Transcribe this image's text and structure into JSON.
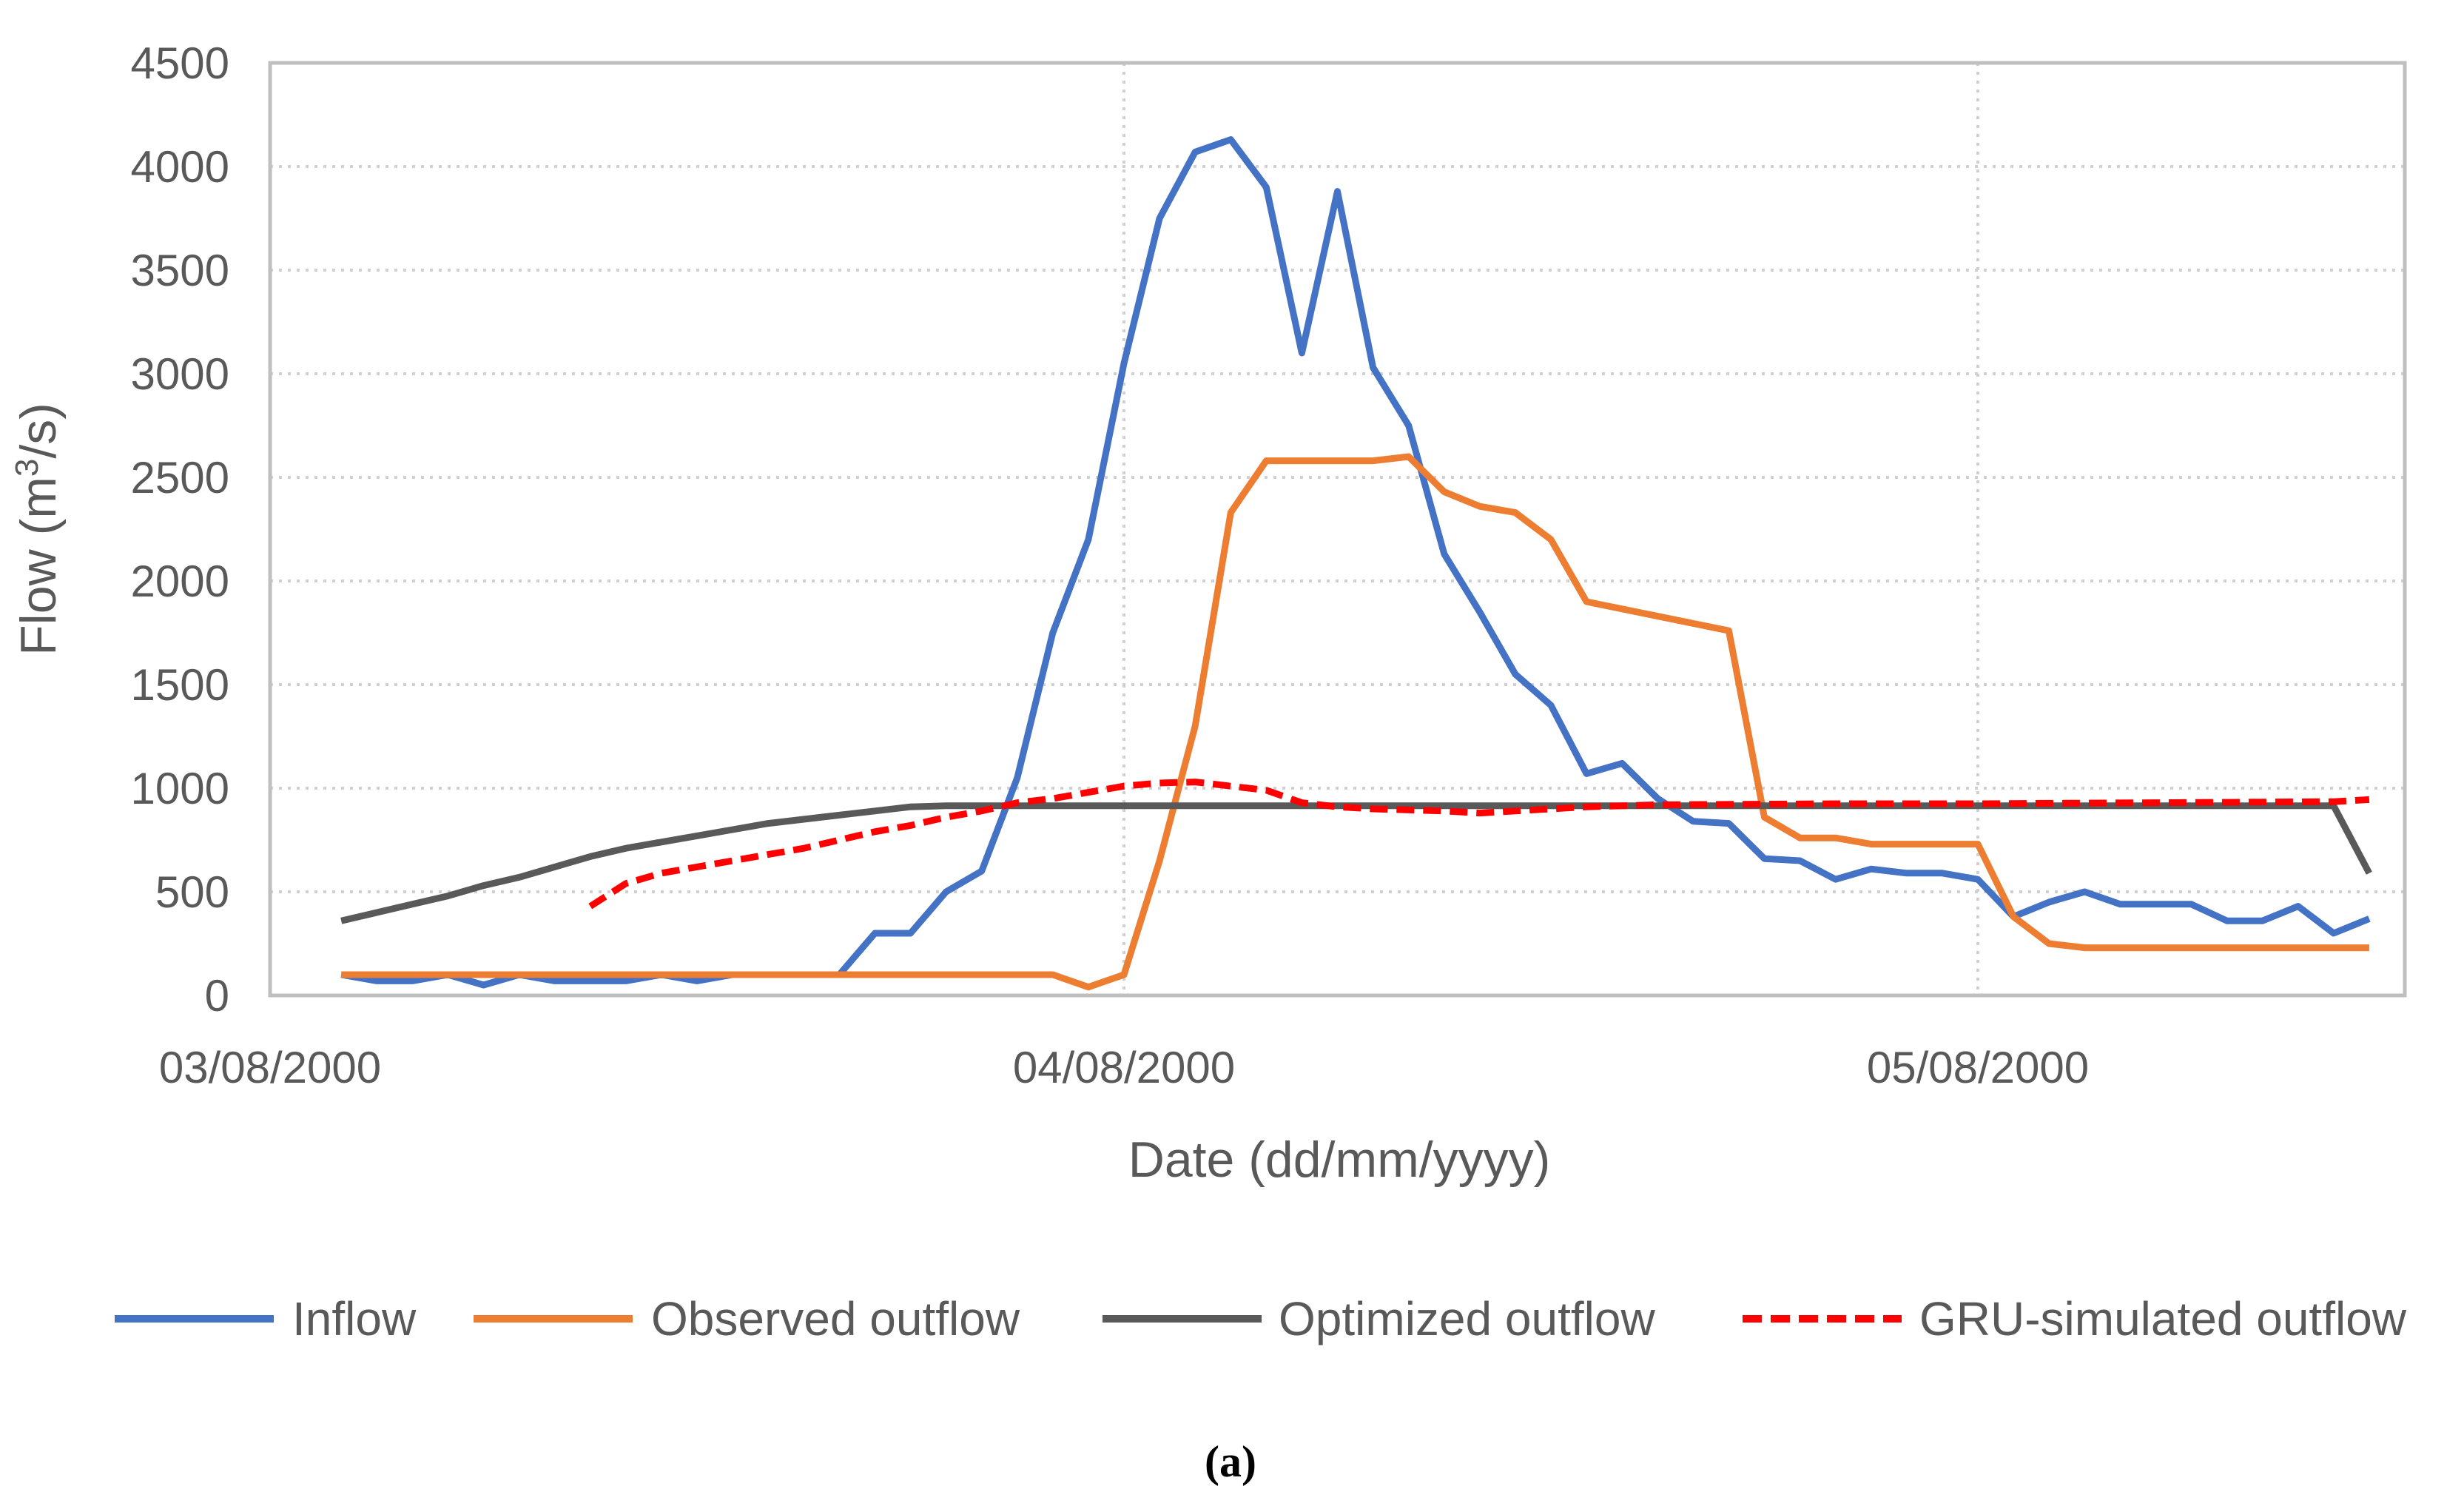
{
  "chart_data": {
    "type": "line",
    "xlabel": "Date (dd/mm/yyyy)",
    "ylabel": {
      "prefix": "Flow (m",
      "sup": "3",
      "suffix": "/s)"
    },
    "ylim": [
      0,
      4500
    ],
    "yticks": [
      0,
      500,
      1000,
      1500,
      2000,
      2500,
      3000,
      3500,
      4000,
      4500
    ],
    "xlim": [
      "03/08/2000 00:00",
      "05/08/2000 12:00"
    ],
    "xticks": [
      "03/08/2000",
      "04/08/2000",
      "05/08/2000"
    ],
    "grid": {
      "horizontal": true,
      "vertical": true,
      "style": "dotted"
    },
    "legend_position": "bottom",
    "caption": "(a)",
    "series": [
      {
        "name": "Inflow",
        "color": "#4472C4",
        "dash": "solid",
        "points": [
          [
            "03/08/2000 02:00",
            100
          ],
          [
            "03/08/2000 03:00",
            70
          ],
          [
            "03/08/2000 04:00",
            70
          ],
          [
            "03/08/2000 05:00",
            100
          ],
          [
            "03/08/2000 06:00",
            50
          ],
          [
            "03/08/2000 07:00",
            100
          ],
          [
            "03/08/2000 08:00",
            70
          ],
          [
            "03/08/2000 09:00",
            70
          ],
          [
            "03/08/2000 10:00",
            70
          ],
          [
            "03/08/2000 11:00",
            100
          ],
          [
            "03/08/2000 12:00",
            70
          ],
          [
            "03/08/2000 13:00",
            100
          ],
          [
            "03/08/2000 14:00",
            100
          ],
          [
            "03/08/2000 15:00",
            100
          ],
          [
            "03/08/2000 16:00",
            100
          ],
          [
            "03/08/2000 17:00",
            300
          ],
          [
            "03/08/2000 18:00",
            300
          ],
          [
            "03/08/2000 19:00",
            500
          ],
          [
            "03/08/2000 20:00",
            600
          ],
          [
            "03/08/2000 21:00",
            1050
          ],
          [
            "03/08/2000 22:00",
            1750
          ],
          [
            "03/08/2000 23:00",
            2200
          ],
          [
            "04/08/2000 00:00",
            3050
          ],
          [
            "04/08/2000 01:00",
            3750
          ],
          [
            "04/08/2000 02:00",
            4070
          ],
          [
            "04/08/2000 03:00",
            4130
          ],
          [
            "04/08/2000 04:00",
            3900
          ],
          [
            "04/08/2000 05:00",
            3100
          ],
          [
            "04/08/2000 06:00",
            3880
          ],
          [
            "04/08/2000 07:00",
            3030
          ],
          [
            "04/08/2000 08:00",
            2750
          ],
          [
            "04/08/2000 09:00",
            2130
          ],
          [
            "04/08/2000 10:00",
            1850
          ],
          [
            "04/08/2000 11:00",
            1550
          ],
          [
            "04/08/2000 12:00",
            1400
          ],
          [
            "04/08/2000 13:00",
            1070
          ],
          [
            "04/08/2000 14:00",
            1120
          ],
          [
            "04/08/2000 15:00",
            950
          ],
          [
            "04/08/2000 16:00",
            840
          ],
          [
            "04/08/2000 17:00",
            830
          ],
          [
            "04/08/2000 18:00",
            660
          ],
          [
            "04/08/2000 19:00",
            650
          ],
          [
            "04/08/2000 20:00",
            560
          ],
          [
            "04/08/2000 21:00",
            610
          ],
          [
            "04/08/2000 22:00",
            590
          ],
          [
            "04/08/2000 23:00",
            590
          ],
          [
            "05/08/2000 00:00",
            560
          ],
          [
            "05/08/2000 01:00",
            380
          ],
          [
            "05/08/2000 02:00",
            450
          ],
          [
            "05/08/2000 03:00",
            500
          ],
          [
            "05/08/2000 04:00",
            440
          ],
          [
            "05/08/2000 05:00",
            440
          ],
          [
            "05/08/2000 06:00",
            440
          ],
          [
            "05/08/2000 07:00",
            360
          ],
          [
            "05/08/2000 08:00",
            360
          ],
          [
            "05/08/2000 09:00",
            430
          ],
          [
            "05/08/2000 10:00",
            300
          ],
          [
            "05/08/2000 11:00",
            370
          ]
        ]
      },
      {
        "name": "Observed outflow",
        "color": "#ED7D31",
        "dash": "solid",
        "points": [
          [
            "03/08/2000 02:00",
            100
          ],
          [
            "03/08/2000 22:00",
            100
          ],
          [
            "03/08/2000 23:00",
            40
          ],
          [
            "04/08/2000 00:00",
            100
          ],
          [
            "04/08/2000 01:00",
            650
          ],
          [
            "04/08/2000 02:00",
            1300
          ],
          [
            "04/08/2000 03:00",
            2330
          ],
          [
            "04/08/2000 04:00",
            2580
          ],
          [
            "04/08/2000 05:00",
            2580
          ],
          [
            "04/08/2000 06:00",
            2580
          ],
          [
            "04/08/2000 07:00",
            2580
          ],
          [
            "04/08/2000 08:00",
            2600
          ],
          [
            "04/08/2000 09:00",
            2430
          ],
          [
            "04/08/2000 10:00",
            2360
          ],
          [
            "04/08/2000 11:00",
            2330
          ],
          [
            "04/08/2000 12:00",
            2200
          ],
          [
            "04/08/2000 13:00",
            1900
          ],
          [
            "04/08/2000 17:00",
            1760
          ],
          [
            "04/08/2000 18:00",
            860
          ],
          [
            "04/08/2000 19:00",
            760
          ],
          [
            "04/08/2000 20:00",
            760
          ],
          [
            "04/08/2000 21:00",
            730
          ],
          [
            "04/08/2000 23:00",
            730
          ],
          [
            "05/08/2000 00:00",
            730
          ],
          [
            "05/08/2000 01:00",
            380
          ],
          [
            "05/08/2000 02:00",
            250
          ],
          [
            "05/08/2000 03:00",
            230
          ],
          [
            "05/08/2000 11:00",
            230
          ]
        ]
      },
      {
        "name": "Optimized outflow",
        "color": "#595959",
        "dash": "solid",
        "points": [
          [
            "03/08/2000 02:00",
            360
          ],
          [
            "03/08/2000 03:00",
            400
          ],
          [
            "03/08/2000 04:00",
            440
          ],
          [
            "03/08/2000 05:00",
            480
          ],
          [
            "03/08/2000 06:00",
            530
          ],
          [
            "03/08/2000 07:00",
            570
          ],
          [
            "03/08/2000 08:00",
            620
          ],
          [
            "03/08/2000 09:00",
            670
          ],
          [
            "03/08/2000 10:00",
            710
          ],
          [
            "03/08/2000 11:00",
            740
          ],
          [
            "03/08/2000 12:00",
            770
          ],
          [
            "03/08/2000 13:00",
            800
          ],
          [
            "03/08/2000 14:00",
            830
          ],
          [
            "03/08/2000 15:00",
            850
          ],
          [
            "03/08/2000 16:00",
            870
          ],
          [
            "03/08/2000 17:00",
            890
          ],
          [
            "03/08/2000 18:00",
            910
          ],
          [
            "03/08/2000 19:00",
            915
          ],
          [
            "05/08/2000 10:00",
            915
          ],
          [
            "05/08/2000 11:00",
            590
          ]
        ]
      },
      {
        "name": "GRU-simulated outflow",
        "color": "#FF0000",
        "dash": "dashed",
        "points": [
          [
            "03/08/2000 09:00",
            430
          ],
          [
            "03/08/2000 10:00",
            540
          ],
          [
            "03/08/2000 11:00",
            590
          ],
          [
            "03/08/2000 12:00",
            620
          ],
          [
            "03/08/2000 13:00",
            650
          ],
          [
            "03/08/2000 14:00",
            680
          ],
          [
            "03/08/2000 15:00",
            710
          ],
          [
            "03/08/2000 16:00",
            750
          ],
          [
            "03/08/2000 17:00",
            790
          ],
          [
            "03/08/2000 18:00",
            820
          ],
          [
            "03/08/2000 19:00",
            860
          ],
          [
            "03/08/2000 20:00",
            890
          ],
          [
            "03/08/2000 21:00",
            930
          ],
          [
            "03/08/2000 22:00",
            950
          ],
          [
            "03/08/2000 23:00",
            980
          ],
          [
            "04/08/2000 00:00",
            1010
          ],
          [
            "04/08/2000 01:00",
            1025
          ],
          [
            "04/08/2000 02:00",
            1030
          ],
          [
            "04/08/2000 03:00",
            1010
          ],
          [
            "04/08/2000 04:00",
            990
          ],
          [
            "04/08/2000 05:00",
            930
          ],
          [
            "04/08/2000 06:00",
            910
          ],
          [
            "04/08/2000 07:00",
            900
          ],
          [
            "04/08/2000 08:00",
            895
          ],
          [
            "04/08/2000 09:00",
            890
          ],
          [
            "04/08/2000 10:00",
            880
          ],
          [
            "04/08/2000 11:00",
            890
          ],
          [
            "04/08/2000 12:00",
            900
          ],
          [
            "04/08/2000 13:00",
            910
          ],
          [
            "04/08/2000 15:00",
            920
          ],
          [
            "04/08/2000 20:00",
            925
          ],
          [
            "05/08/2000 00:00",
            925
          ],
          [
            "05/08/2000 05:00",
            930
          ],
          [
            "05/08/2000 10:00",
            935
          ],
          [
            "05/08/2000 11:00",
            945
          ]
        ]
      }
    ]
  }
}
